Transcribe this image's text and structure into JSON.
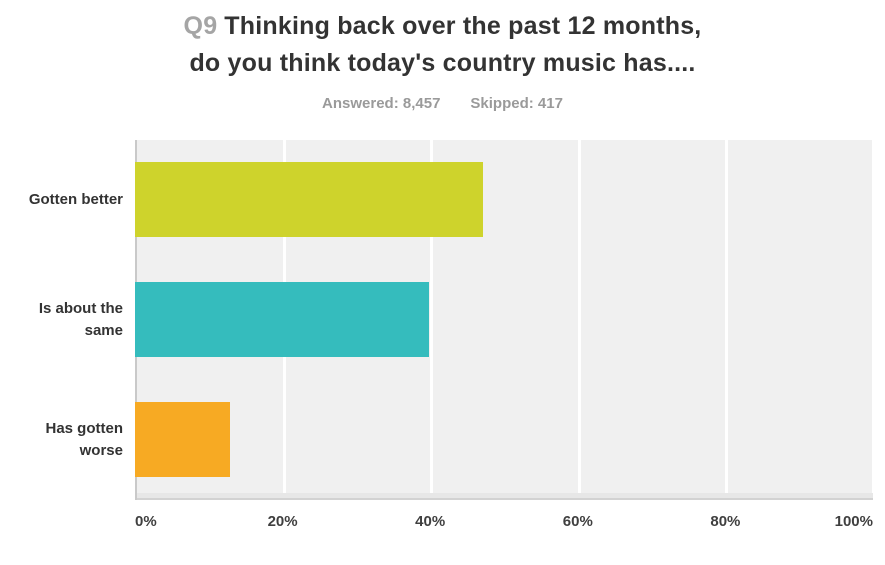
{
  "header": {
    "question_number": "Q9",
    "title_line1": "Thinking back over the past 12 months,",
    "title_line2": "do you think today's country music has....",
    "answered": "Answered: 8,457",
    "skipped": "Skipped: 417"
  },
  "colors": {
    "title_dark": "#333333",
    "question_number_gray": "#a5a5a5",
    "stats_gray": "#9a9a9a",
    "plot_background": "#f0f0f0",
    "gridline": "#ffffff",
    "axis_line": "#c9c9c9"
  },
  "chart_data": {
    "type": "bar",
    "orientation": "horizontal",
    "title": "Q9 Thinking back over the past 12 months, do you think today's country music has....",
    "subtitle": "Answered: 8,457    Skipped: 417",
    "categories": [
      "Gotten better",
      "Is about the same",
      "Has gotten worse"
    ],
    "values": [
      47.2,
      39.9,
      12.9
    ],
    "unit": "percent",
    "xlabel": "",
    "ylabel": "",
    "xlim": [
      0,
      100
    ],
    "x_ticks": [
      "0%",
      "20%",
      "40%",
      "60%",
      "80%",
      "100%"
    ],
    "bar_colors": [
      "#ced32c",
      "#35bcbd",
      "#f7aa23"
    ],
    "grid": true,
    "legend": "none"
  }
}
